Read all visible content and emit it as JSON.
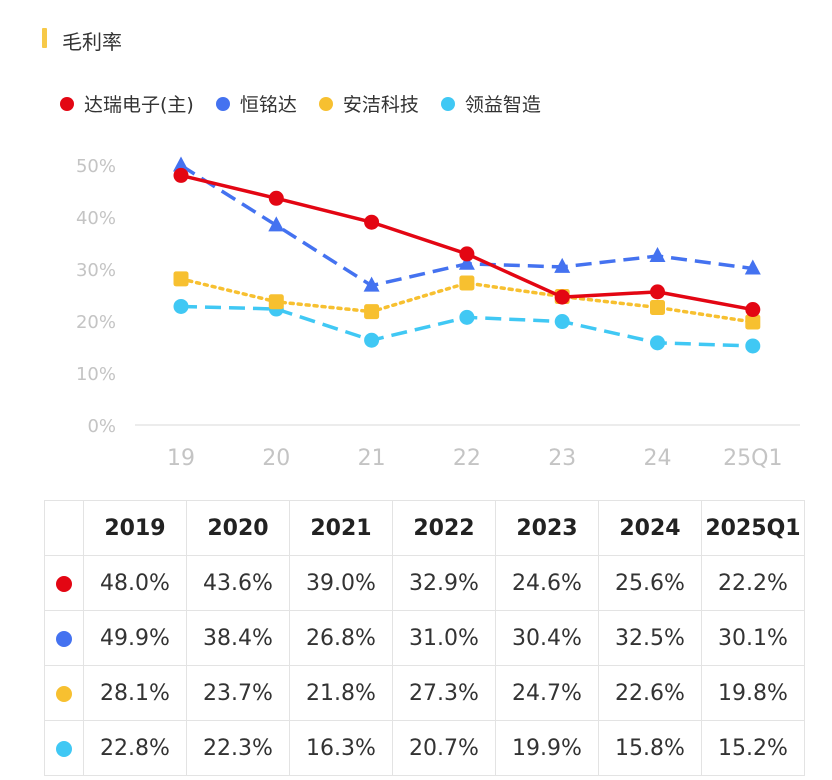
{
  "title": "毛利率",
  "colors": {
    "title_bar": "#f7c948",
    "series": [
      "#e30613",
      "#4472f0",
      "#f7c030",
      "#40c8f4"
    ]
  },
  "chart_data": {
    "type": "line",
    "x": [
      "19",
      "20",
      "21",
      "22",
      "23",
      "24",
      "25Q1"
    ],
    "y_ticks": [
      "0%",
      "10%",
      "20%",
      "30%",
      "40%",
      "50%"
    ],
    "ylim": [
      0,
      50
    ],
    "grid": false,
    "legend_position": "top",
    "series": [
      {
        "name": "达瑞电子(主)",
        "values": [
          48.0,
          43.6,
          39.0,
          32.9,
          24.6,
          25.6,
          22.2
        ],
        "marker": "circle",
        "line": "solid"
      },
      {
        "name": "恒铭达",
        "values": [
          49.9,
          38.4,
          26.8,
          31.0,
          30.4,
          32.5,
          30.1
        ],
        "marker": "triangle",
        "line": "dashed"
      },
      {
        "name": "安洁科技",
        "values": [
          28.1,
          23.7,
          21.8,
          27.3,
          24.7,
          22.6,
          19.8
        ],
        "marker": "square",
        "line": "dotted"
      },
      {
        "name": "领益智造",
        "values": [
          22.8,
          22.3,
          16.3,
          20.7,
          19.9,
          15.8,
          15.2
        ],
        "marker": "circle",
        "line": "dashed"
      }
    ]
  },
  "table": {
    "headers": [
      "2019",
      "2020",
      "2021",
      "2022",
      "2023",
      "2024",
      "2025Q1"
    ],
    "rows": [
      [
        "48.0%",
        "43.6%",
        "39.0%",
        "32.9%",
        "24.6%",
        "25.6%",
        "22.2%"
      ],
      [
        "49.9%",
        "38.4%",
        "26.8%",
        "31.0%",
        "30.4%",
        "32.5%",
        "30.1%"
      ],
      [
        "28.1%",
        "23.7%",
        "21.8%",
        "27.3%",
        "24.7%",
        "22.6%",
        "19.8%"
      ],
      [
        "22.8%",
        "22.3%",
        "16.3%",
        "20.7%",
        "19.9%",
        "15.8%",
        "15.2%"
      ]
    ]
  }
}
